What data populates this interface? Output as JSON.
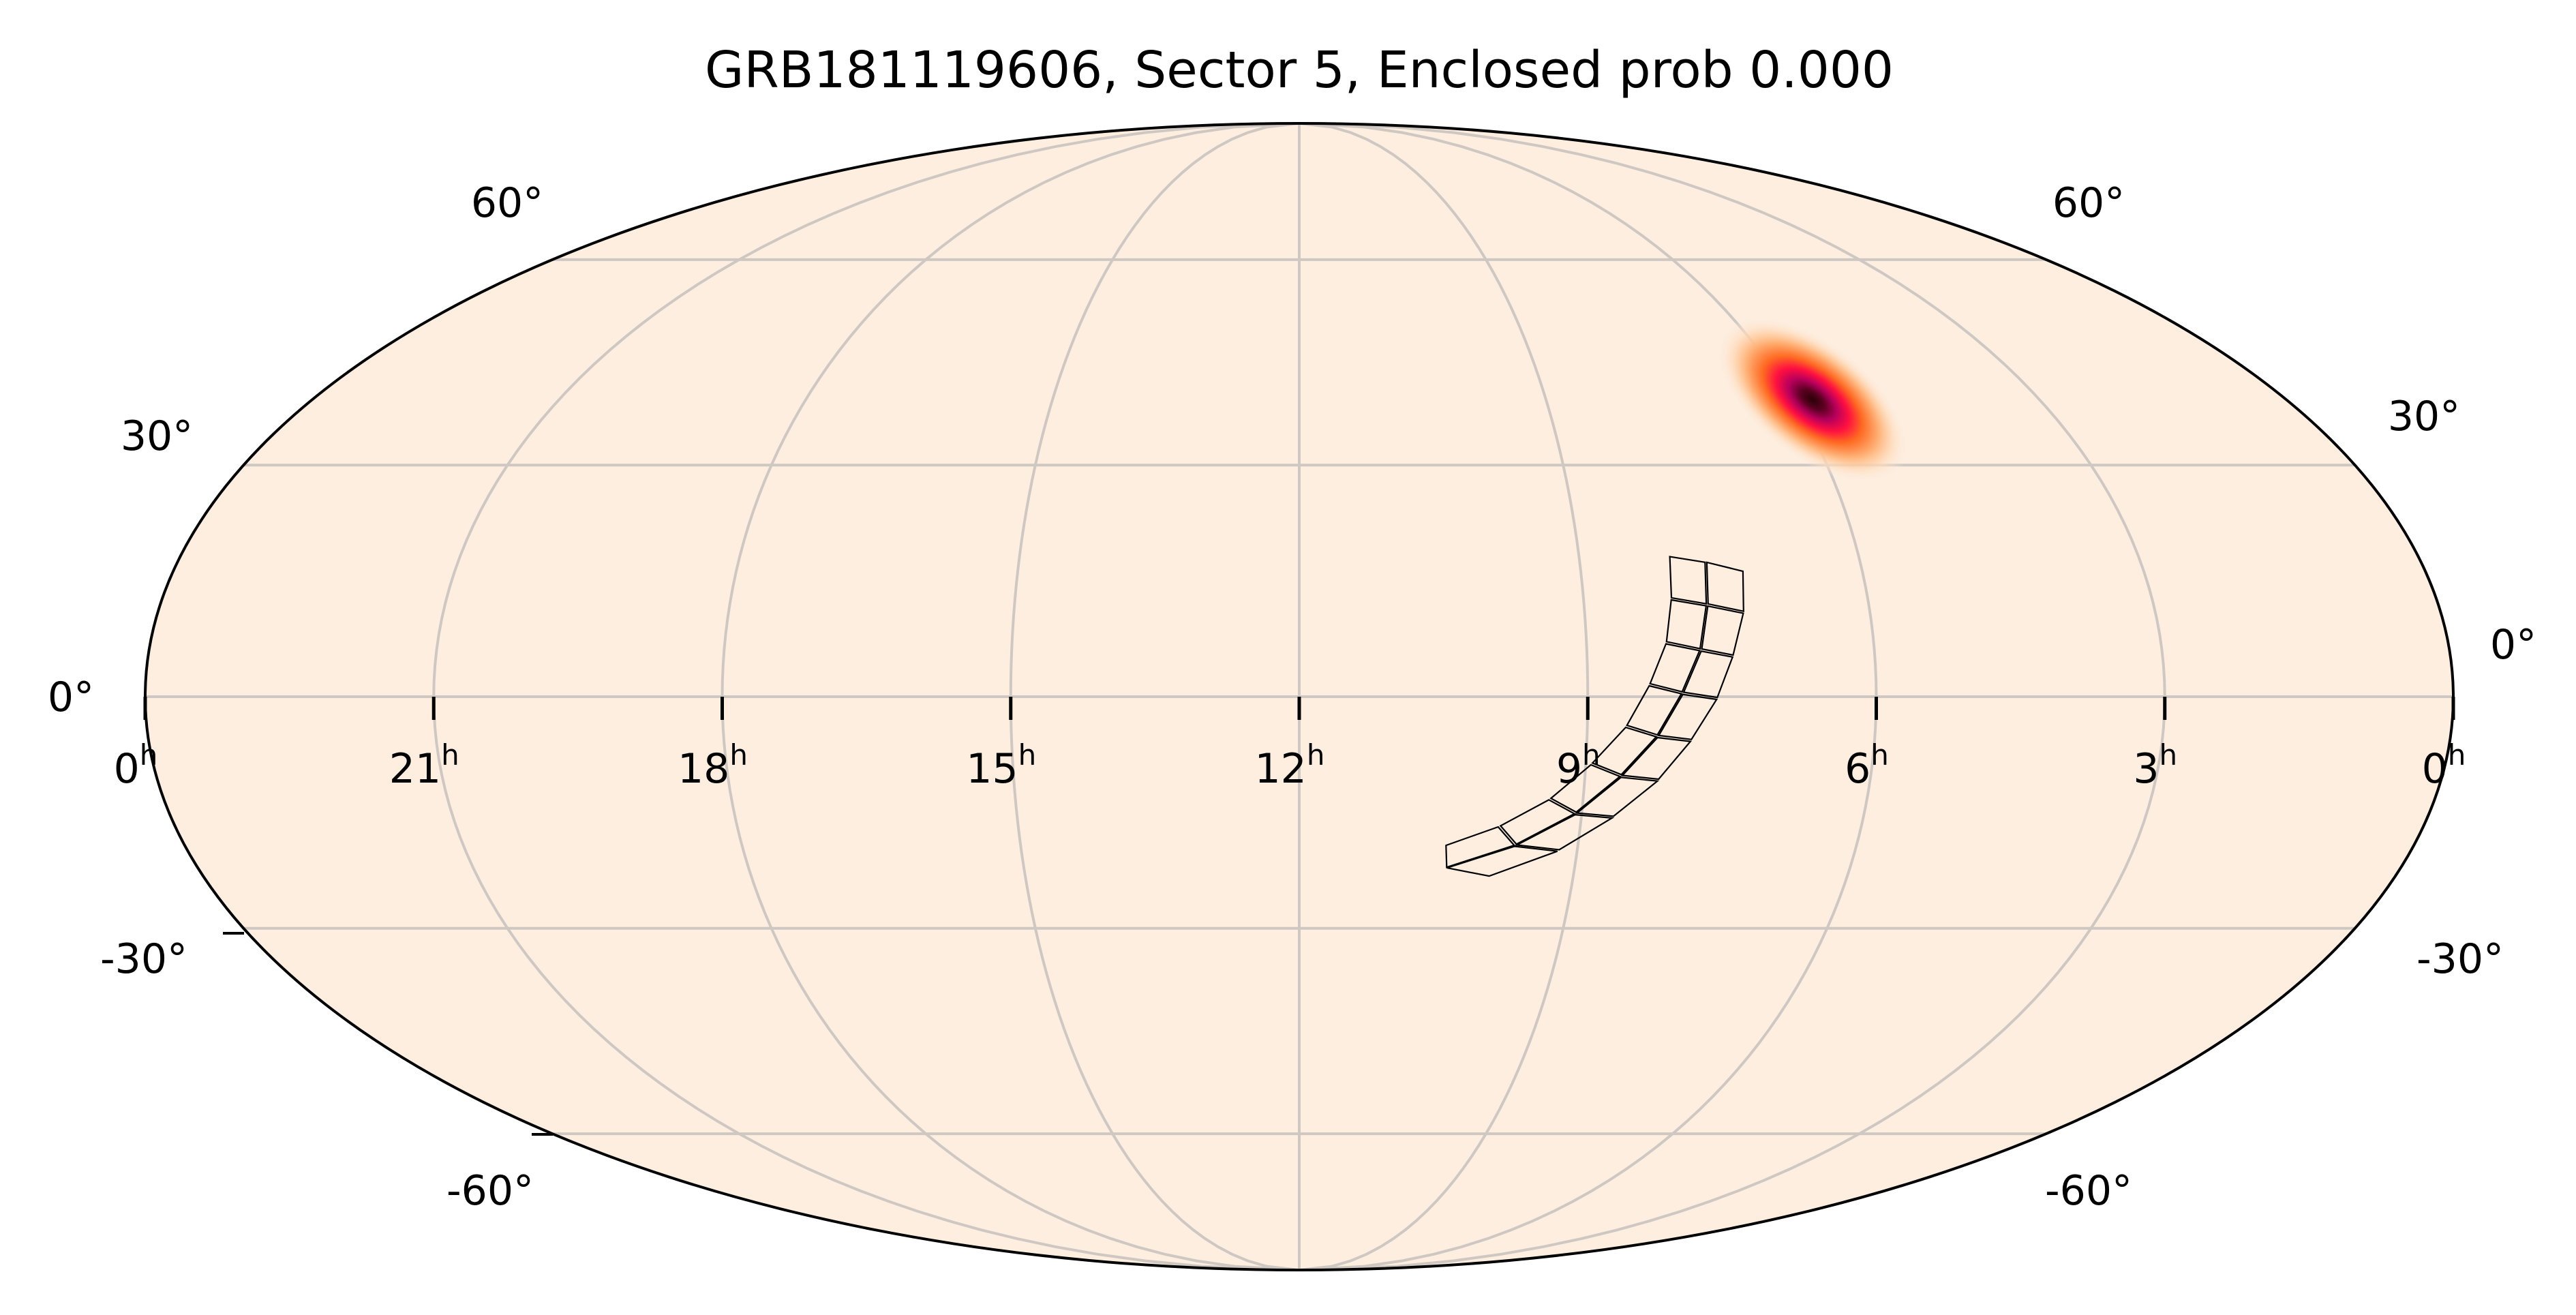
{
  "chart_data": {
    "type": "heatmap",
    "projection": "mollweide",
    "title": "GRB181119606, Sector 5, Enclosed prob 0.000",
    "background_color": "#fdeee0",
    "grid": true,
    "grid_color": "#cfc8c2",
    "ra_ticks_hours": [
      24,
      21,
      18,
      15,
      12,
      9,
      6,
      3,
      0
    ],
    "ra_tick_labels": [
      "0",
      "21",
      "18",
      "15",
      "12",
      "9",
      "6",
      "3",
      "0"
    ],
    "ra_unit_label": "h",
    "dec_gridlines_deg": [
      -60,
      -30,
      0,
      30,
      60
    ],
    "dec_labels_left": [
      "60°",
      "30°",
      "0°",
      "-30°",
      "-60°"
    ],
    "dec_labels_right": [
      "60°",
      "30°",
      "0°",
      "-30°",
      "-60°"
    ],
    "probability_peak": {
      "ra_deg": 86,
      "dec_deg": 38.5
    },
    "colormap": [
      "#fdeee0",
      "#ffc89a",
      "#ff7a2a",
      "#ff1a44",
      "#c2005e",
      "#3b000f"
    ],
    "footprint": {
      "sector": 5,
      "cameras": 4,
      "ccds_per_camera": 4,
      "enclosed_prob": 0.0
    }
  }
}
